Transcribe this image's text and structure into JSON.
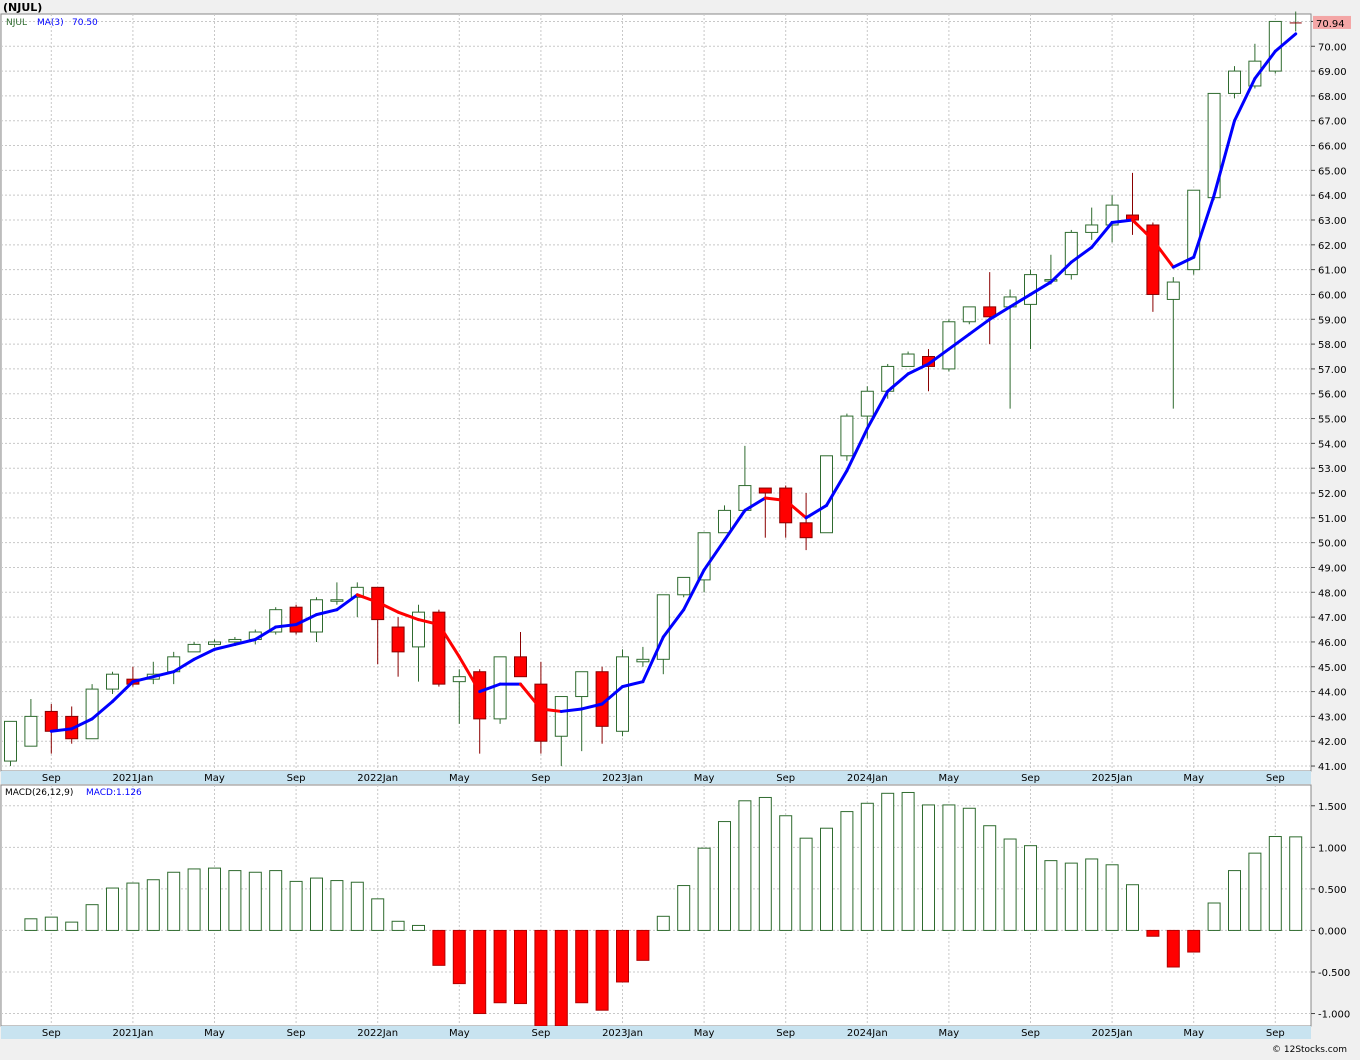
{
  "header": {
    "symbol_title": "(NJUL)",
    "ma_symbol": "NJUL",
    "ma_label": "MA(3)",
    "ma_value": "70.50",
    "macd_label": "MACD(26,12,9)",
    "macd_value_label": "MACD:1.126",
    "last_price": "70.94",
    "copyright": "© 12Stocks.com"
  },
  "colors": {
    "background": "#ffffff",
    "page": "#f0f0f0",
    "grid": "#c8c8c8",
    "up": "#2f6b2f",
    "down_fill": "#ff0000",
    "ma_up": "#0000ff",
    "ma_down": "#ff0000",
    "axis_strip": "#c8e3f0",
    "price_tag": "#f4a6a6"
  },
  "chart_data": [
    {
      "type": "candlestick",
      "title": "(NJUL)",
      "period": "monthly",
      "x_ticks": [
        "Sep",
        "2021Jan",
        "May",
        "Sep",
        "2022Jan",
        "May",
        "Sep",
        "2023Jan",
        "May",
        "Sep",
        "2024Jan",
        "May",
        "Sep",
        "2025Jan",
        "May",
        "Sep"
      ],
      "x_tick_indices": [
        2,
        6,
        10,
        14,
        18,
        22,
        26,
        30,
        34,
        38,
        42,
        46,
        50,
        54,
        58,
        62
      ],
      "ylim": [
        40.8,
        71.3
      ],
      "y_ticks": [
        "41.00",
        "42.00",
        "43.00",
        "44.00",
        "45.00",
        "46.00",
        "47.00",
        "48.00",
        "49.00",
        "50.00",
        "51.00",
        "52.00",
        "53.00",
        "54.00",
        "55.00",
        "56.00",
        "57.00",
        "58.00",
        "59.00",
        "60.00",
        "61.00",
        "62.00",
        "63.00",
        "64.00",
        "65.00",
        "66.00",
        "67.00",
        "68.00",
        "69.00",
        "70.00",
        "71.00"
      ],
      "last_value": 70.94,
      "candles": [
        {
          "o": 41.2,
          "h": 42.5,
          "l": 41.0,
          "c": 42.8
        },
        {
          "o": 41.8,
          "h": 43.7,
          "l": 41.8,
          "c": 43.0
        },
        {
          "o": 43.2,
          "h": 43.5,
          "l": 41.5,
          "c": 42.4
        },
        {
          "o": 43.0,
          "h": 43.4,
          "l": 41.9,
          "c": 42.1
        },
        {
          "o": 42.1,
          "h": 44.3,
          "l": 42.1,
          "c": 44.1
        },
        {
          "o": 44.1,
          "h": 44.8,
          "l": 43.9,
          "c": 44.7
        },
        {
          "o": 44.5,
          "h": 45.0,
          "l": 44.2,
          "c": 44.3
        },
        {
          "o": 44.5,
          "h": 45.2,
          "l": 44.3,
          "c": 44.7
        },
        {
          "o": 44.8,
          "h": 45.6,
          "l": 44.3,
          "c": 45.4
        },
        {
          "o": 45.6,
          "h": 46.0,
          "l": 45.6,
          "c": 45.9
        },
        {
          "o": 45.9,
          "h": 46.1,
          "l": 45.8,
          "c": 46.0
        },
        {
          "o": 46.0,
          "h": 46.2,
          "l": 45.9,
          "c": 46.1
        },
        {
          "o": 46.1,
          "h": 46.5,
          "l": 45.9,
          "c": 46.4
        },
        {
          "o": 46.4,
          "h": 47.4,
          "l": 46.3,
          "c": 47.3
        },
        {
          "o": 47.4,
          "h": 47.5,
          "l": 46.3,
          "c": 46.4
        },
        {
          "o": 46.4,
          "h": 47.8,
          "l": 46.0,
          "c": 47.7
        },
        {
          "o": 47.7,
          "h": 48.4,
          "l": 47.5,
          "c": 47.7
        },
        {
          "o": 47.8,
          "h": 48.4,
          "l": 47.0,
          "c": 48.2
        },
        {
          "o": 48.2,
          "h": 48.2,
          "l": 45.1,
          "c": 46.9
        },
        {
          "o": 46.6,
          "h": 47.0,
          "l": 44.6,
          "c": 45.6
        },
        {
          "o": 45.8,
          "h": 47.5,
          "l": 44.4,
          "c": 47.2
        },
        {
          "o": 47.2,
          "h": 47.3,
          "l": 44.2,
          "c": 44.3
        },
        {
          "o": 44.4,
          "h": 44.9,
          "l": 42.7,
          "c": 44.6
        },
        {
          "o": 44.8,
          "h": 44.9,
          "l": 41.5,
          "c": 42.9
        },
        {
          "o": 42.9,
          "h": 45.4,
          "l": 42.7,
          "c": 45.4
        },
        {
          "o": 45.4,
          "h": 46.4,
          "l": 44.6,
          "c": 44.6
        },
        {
          "o": 44.3,
          "h": 45.2,
          "l": 41.5,
          "c": 42.0
        },
        {
          "o": 42.2,
          "h": 43.6,
          "l": 41.0,
          "c": 43.8
        },
        {
          "o": 43.8,
          "h": 44.8,
          "l": 41.6,
          "c": 44.8
        },
        {
          "o": 44.8,
          "h": 45.0,
          "l": 41.9,
          "c": 42.6
        },
        {
          "o": 42.4,
          "h": 45.7,
          "l": 42.2,
          "c": 45.4
        },
        {
          "o": 45.2,
          "h": 45.8,
          "l": 45.0,
          "c": 45.3
        },
        {
          "o": 45.3,
          "h": 47.8,
          "l": 44.7,
          "c": 47.9
        },
        {
          "o": 47.9,
          "h": 48.6,
          "l": 47.8,
          "c": 48.6
        },
        {
          "o": 48.5,
          "h": 50.4,
          "l": 48.0,
          "c": 50.4
        },
        {
          "o": 50.4,
          "h": 51.5,
          "l": 50.4,
          "c": 51.3
        },
        {
          "o": 51.3,
          "h": 53.9,
          "l": 51.2,
          "c": 52.3
        },
        {
          "o": 52.2,
          "h": 52.2,
          "l": 50.2,
          "c": 52.0
        },
        {
          "o": 52.2,
          "h": 52.3,
          "l": 50.2,
          "c": 50.8
        },
        {
          "o": 50.8,
          "h": 52.0,
          "l": 49.7,
          "c": 50.2
        },
        {
          "o": 50.4,
          "h": 53.5,
          "l": 50.4,
          "c": 53.5
        },
        {
          "o": 53.5,
          "h": 55.2,
          "l": 53.3,
          "c": 55.1
        },
        {
          "o": 55.1,
          "h": 56.3,
          "l": 54.2,
          "c": 56.1
        },
        {
          "o": 56.1,
          "h": 57.2,
          "l": 55.8,
          "c": 57.1
        },
        {
          "o": 57.1,
          "h": 57.7,
          "l": 57.1,
          "c": 57.6
        },
        {
          "o": 57.5,
          "h": 57.8,
          "l": 56.1,
          "c": 57.1
        },
        {
          "o": 57.0,
          "h": 59.0,
          "l": 56.9,
          "c": 58.9
        },
        {
          "o": 58.9,
          "h": 59.5,
          "l": 58.8,
          "c": 59.5
        },
        {
          "o": 59.5,
          "h": 60.9,
          "l": 58.0,
          "c": 59.1
        },
        {
          "o": 59.5,
          "h": 60.2,
          "l": 55.4,
          "c": 59.9
        },
        {
          "o": 59.6,
          "h": 61.0,
          "l": 57.8,
          "c": 60.8
        },
        {
          "o": 60.6,
          "h": 61.6,
          "l": 60.4,
          "c": 60.6
        },
        {
          "o": 60.8,
          "h": 62.6,
          "l": 60.6,
          "c": 62.5
        },
        {
          "o": 62.5,
          "h": 63.5,
          "l": 62.2,
          "c": 62.8
        },
        {
          "o": 62.8,
          "h": 64.0,
          "l": 62.1,
          "c": 63.6
        },
        {
          "o": 63.2,
          "h": 64.9,
          "l": 62.4,
          "c": 63.0
        },
        {
          "o": 62.8,
          "h": 62.9,
          "l": 59.3,
          "c": 60.0
        },
        {
          "o": 59.8,
          "h": 60.7,
          "l": 55.4,
          "c": 60.5
        },
        {
          "o": 61.0,
          "h": 64.1,
          "l": 60.8,
          "c": 64.2
        },
        {
          "o": 63.9,
          "h": 68.1,
          "l": 63.8,
          "c": 68.1
        },
        {
          "o": 68.1,
          "h": 69.2,
          "l": 67.9,
          "c": 69.0
        },
        {
          "o": 68.4,
          "h": 70.1,
          "l": 68.3,
          "c": 69.4
        },
        {
          "o": 69.0,
          "h": 71.0,
          "l": 68.9,
          "c": 71.0
        },
        {
          "o": 70.9,
          "h": 71.4,
          "l": 70.6,
          "c": 70.94
        }
      ],
      "ma3": [
        null,
        null,
        42.4,
        42.5,
        42.9,
        43.6,
        44.4,
        44.6,
        44.8,
        45.3,
        45.7,
        45.9,
        46.1,
        46.6,
        46.7,
        47.1,
        47.3,
        47.9,
        47.6,
        47.2,
        46.9,
        46.7,
        45.4,
        44.0,
        44.3,
        44.3,
        43.3,
        43.2,
        43.3,
        43.5,
        44.2,
        44.4,
        46.2,
        47.3,
        48.9,
        50.1,
        51.3,
        51.8,
        51.7,
        51.0,
        51.5,
        52.9,
        54.6,
        56.1,
        56.8,
        57.2,
        57.8,
        58.4,
        59.0,
        59.5,
        60.0,
        60.5,
        61.3,
        61.9,
        62.9,
        63.0,
        62.2,
        61.1,
        61.5,
        64.0,
        67.0,
        68.7,
        69.8,
        70.5
      ]
    },
    {
      "type": "bar",
      "title": "MACD(26,12,9)",
      "ylim": [
        -1.15,
        1.75
      ],
      "y_ticks": [
        "-1.000",
        "-0.500",
        "0.000",
        "0.500",
        "1.000",
        "1.500"
      ],
      "x_ticks": [
        "Sep",
        "2021Jan",
        "May",
        "Sep",
        "2022Jan",
        "May",
        "Sep",
        "2023Jan",
        "May",
        "Sep",
        "2024Jan",
        "May",
        "Sep",
        "2025Jan",
        "May",
        "Sep"
      ],
      "values": [
        0.0,
        0.14,
        0.16,
        0.1,
        0.31,
        0.51,
        0.57,
        0.61,
        0.7,
        0.74,
        0.75,
        0.72,
        0.7,
        0.72,
        0.59,
        0.63,
        0.6,
        0.58,
        0.38,
        0.11,
        0.06,
        -0.42,
        -0.64,
        -1.0,
        -0.87,
        -0.88,
        -1.15,
        -1.15,
        -0.87,
        -0.96,
        -0.62,
        -0.36,
        0.17,
        0.54,
        0.99,
        1.31,
        1.56,
        1.6,
        1.38,
        1.11,
        1.23,
        1.43,
        1.53,
        1.65,
        1.66,
        1.51,
        1.51,
        1.47,
        1.26,
        1.1,
        1.02,
        0.84,
        0.81,
        0.86,
        0.79,
        0.55,
        -0.07,
        -0.44,
        -0.26,
        0.33,
        0.72,
        0.93,
        1.13,
        1.126
      ]
    }
  ]
}
